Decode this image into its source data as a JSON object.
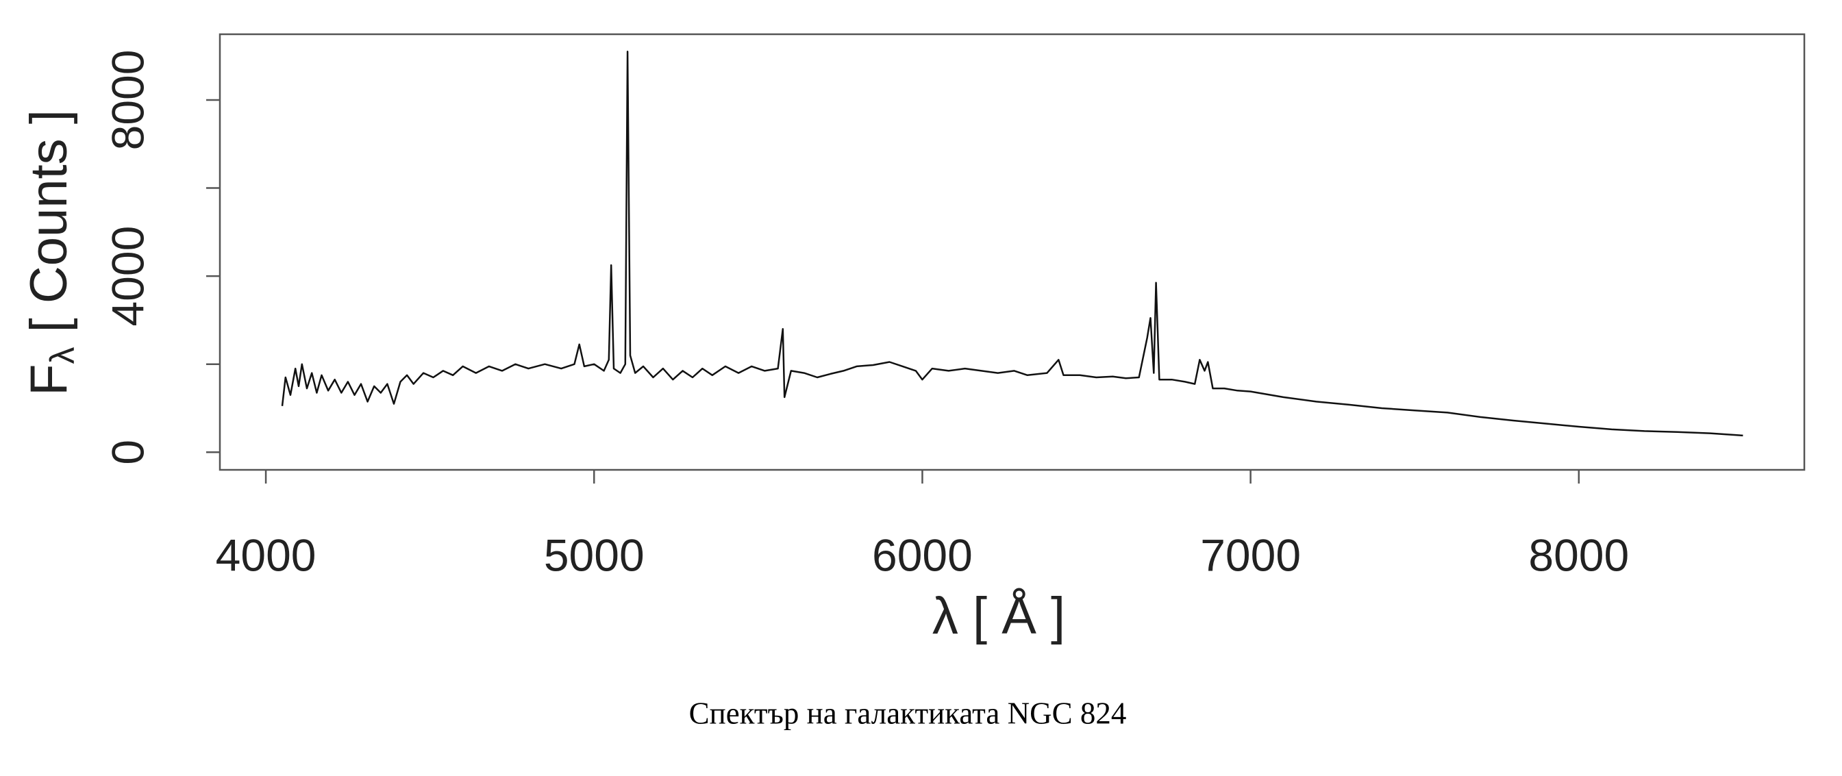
{
  "chart_data": {
    "type": "line",
    "caption": "Спектър на галактиката NGC 824",
    "xlabel": "λ [ Å ]",
    "ylabel_parts": [
      "F",
      "λ",
      " [ Counts ]"
    ],
    "xlim": [
      3860,
      8687
    ],
    "ylim": [
      -400,
      9493
    ],
    "xticks": [
      4000,
      5000,
      6000,
      7000,
      8000
    ],
    "yticks": [
      0,
      4000,
      8000
    ],
    "yminorticks": [
      2000,
      6000
    ],
    "x": [
      4050,
      4060,
      4075,
      4090,
      4100,
      4110,
      4125,
      4140,
      4155,
      4170,
      4190,
      4210,
      4230,
      4250,
      4270,
      4290,
      4310,
      4330,
      4350,
      4370,
      4390,
      4410,
      4430,
      4450,
      4480,
      4510,
      4540,
      4570,
      4600,
      4640,
      4680,
      4720,
      4760,
      4800,
      4850,
      4900,
      4940,
      4955,
      4970,
      5000,
      5030,
      5045,
      5052,
      5060,
      5080,
      5095,
      5102,
      5110,
      5125,
      5150,
      5180,
      5210,
      5240,
      5270,
      5300,
      5330,
      5360,
      5400,
      5440,
      5480,
      5520,
      5560,
      5575,
      5580,
      5600,
      5640,
      5680,
      5720,
      5760,
      5800,
      5850,
      5900,
      5940,
      5980,
      6000,
      6030,
      6080,
      6130,
      6180,
      6230,
      6280,
      6320,
      6380,
      6415,
      6430,
      6480,
      6530,
      6580,
      6620,
      6660,
      6685,
      6695,
      6705,
      6712,
      6722,
      6760,
      6800,
      6830,
      6845,
      6860,
      6870,
      6885,
      6920,
      6960,
      7000,
      7100,
      7200,
      7300,
      7400,
      7500,
      7600,
      7700,
      7800,
      7900,
      8000,
      8100,
      8200,
      8300,
      8400,
      8500
    ],
    "series": [
      {
        "color": "#111111",
        "values": [
          1050,
          1700,
          1300,
          1900,
          1500,
          2000,
          1450,
          1800,
          1350,
          1750,
          1400,
          1650,
          1350,
          1600,
          1300,
          1550,
          1150,
          1500,
          1350,
          1550,
          1100,
          1600,
          1750,
          1550,
          1800,
          1700,
          1850,
          1750,
          1950,
          1800,
          1950,
          1850,
          2000,
          1900,
          2000,
          1900,
          2000,
          2450,
          1950,
          2000,
          1850,
          2100,
          4250,
          1900,
          1800,
          2000,
          9100,
          2200,
          1800,
          1950,
          1700,
          1900,
          1650,
          1850,
          1700,
          1900,
          1750,
          1950,
          1800,
          1950,
          1850,
          1900,
          2800,
          1250,
          1850,
          1800,
          1700,
          1780,
          1850,
          1950,
          1980,
          2050,
          1950,
          1850,
          1650,
          1900,
          1850,
          1900,
          1850,
          1800,
          1850,
          1750,
          1800,
          2100,
          1750,
          1750,
          1700,
          1720,
          1680,
          1700,
          2600,
          3050,
          1800,
          3850,
          1650,
          1650,
          1600,
          1550,
          2100,
          1850,
          2050,
          1450,
          1450,
          1400,
          1380,
          1250,
          1150,
          1080,
          1000,
          950,
          900,
          800,
          720,
          650,
          580,
          520,
          480,
          460,
          430,
          380
        ]
      }
    ]
  }
}
